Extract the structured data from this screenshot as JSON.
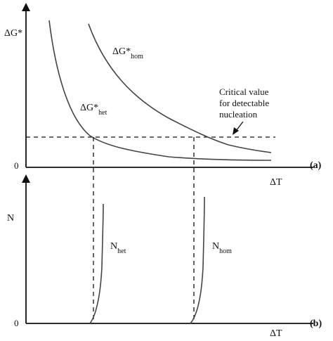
{
  "panel_a": {
    "y_axis_label": "ΔG*",
    "x_axis_label": "ΔT",
    "origin_label": "0",
    "panel_tag": "(a)",
    "curve_hom": {
      "base": "ΔG*",
      "sub": "hom"
    },
    "curve_het": {
      "base": "ΔG*",
      "sub": "het"
    },
    "critical_note": [
      "Critical value",
      "for detectable",
      "nucleation"
    ]
  },
  "panel_b": {
    "y_axis_label": "N",
    "x_axis_label": "ΔT",
    "origin_label": "0",
    "panel_tag": "(b)",
    "curve_het": {
      "base": "N",
      "sub": "het"
    },
    "curve_hom": {
      "base": "N",
      "sub": "hom"
    }
  }
}
